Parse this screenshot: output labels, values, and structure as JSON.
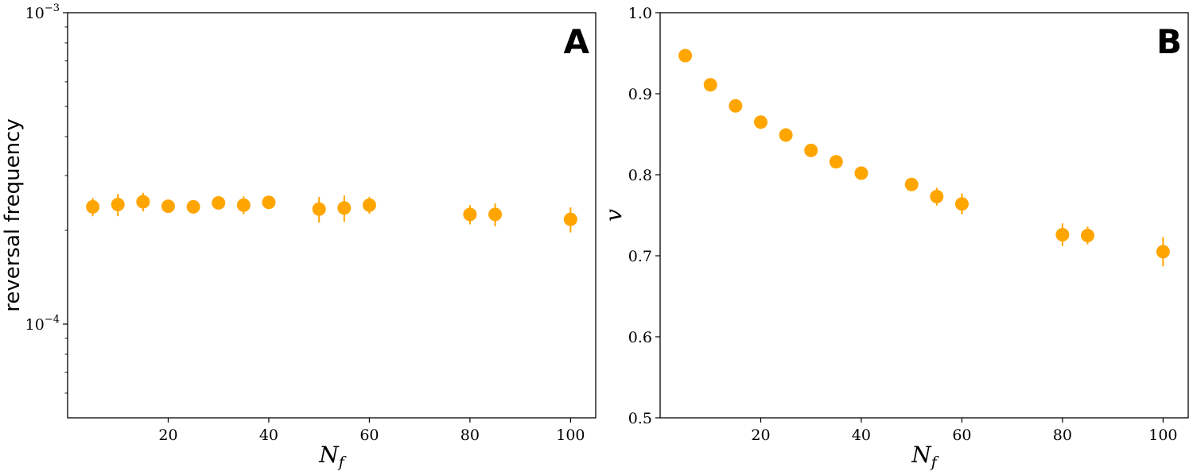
{
  "colors": {
    "marker": "#FFA500",
    "axes": "#000000"
  },
  "chart_data": [
    {
      "panel": "A",
      "type": "scatter",
      "xlabel": "N_f",
      "ylabel": "reversal frequency",
      "xlim": [
        0,
        105
      ],
      "ylim": [
        5e-05,
        0.001
      ],
      "yscale": "log",
      "xticks": [
        20,
        40,
        60,
        80,
        100
      ],
      "yticks": [
        {
          "value": 0.0001,
          "label": "10^{-4}"
        },
        {
          "value": 0.001,
          "label": "10^{-3}"
        }
      ],
      "grid": false,
      "series": [
        {
          "x": [
            5,
            10,
            15,
            20,
            25,
            30,
            35,
            40,
            50,
            55,
            60,
            80,
            85,
            100
          ],
          "y": [
            0.000238,
            0.000242,
            0.000247,
            0.000239,
            0.000238,
            0.000245,
            0.000241,
            0.000246,
            0.000234,
            0.000236,
            0.000241,
            0.000225,
            0.000225,
            0.000217
          ],
          "yerr": [
            1.6e-05,
            2e-05,
            1.7e-05,
            9e-06,
            1.1e-05,
            1e-05,
            1.6e-05,
            9e-06,
            2.2e-05,
            2.3e-05,
            1.5e-05,
            1.6e-05,
            1.9e-05,
            2e-05
          ]
        }
      ]
    },
    {
      "panel": "B",
      "type": "scatter",
      "xlabel": "N_f",
      "ylabel": "v",
      "xlim": [
        0,
        105
      ],
      "ylim": [
        0.5,
        1.0
      ],
      "yscale": "linear",
      "xticks": [
        20,
        40,
        60,
        80,
        100
      ],
      "yticks": [
        {
          "value": 0.5,
          "label": "0.5"
        },
        {
          "value": 0.6,
          "label": "0.6"
        },
        {
          "value": 0.7,
          "label": "0.7"
        },
        {
          "value": 0.8,
          "label": "0.8"
        },
        {
          "value": 0.9,
          "label": "0.9"
        },
        {
          "value": 1.0,
          "label": "1.0"
        }
      ],
      "grid": false,
      "series": [
        {
          "x": [
            5,
            10,
            15,
            20,
            25,
            30,
            35,
            40,
            50,
            55,
            60,
            80,
            85,
            100
          ],
          "y": [
            0.947,
            0.911,
            0.885,
            0.865,
            0.849,
            0.83,
            0.816,
            0.802,
            0.788,
            0.773,
            0.764,
            0.726,
            0.725,
            0.705
          ],
          "yerr": [
            0.003,
            0.003,
            0.003,
            0.003,
            0.004,
            0.003,
            0.004,
            0.004,
            0.008,
            0.011,
            0.013,
            0.014,
            0.011,
            0.018
          ]
        }
      ]
    }
  ]
}
